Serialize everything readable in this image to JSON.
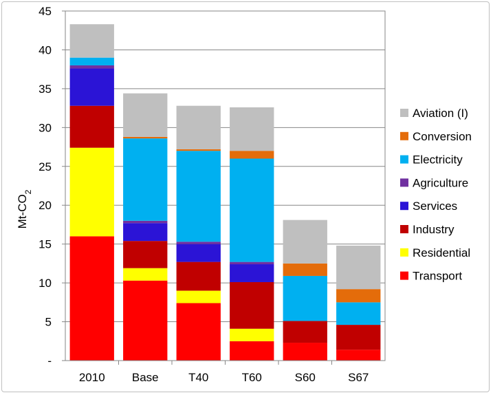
{
  "chart_data": {
    "type": "bar",
    "stacked": true,
    "ylabel": "Mt-CO",
    "ylabel_subscript": "2",
    "ylim": [
      0,
      45
    ],
    "ytick_labels": [
      "-",
      "5",
      "10",
      "15",
      "20",
      "25",
      "30",
      "35",
      "40",
      "45"
    ],
    "grid": true,
    "legend_position": "right",
    "categories": [
      "2010",
      "Base",
      "T40",
      "T60",
      "S60",
      "S67"
    ],
    "series": [
      {
        "name": "Transport",
        "color": "#ff0000",
        "values": [
          16.0,
          10.3,
          7.4,
          2.5,
          2.3,
          1.4
        ]
      },
      {
        "name": "Residential",
        "color": "#ffff00",
        "values": [
          11.4,
          1.6,
          1.6,
          1.6,
          0,
          0
        ]
      },
      {
        "name": "Industry",
        "color": "#c00000",
        "values": [
          5.4,
          3.5,
          3.7,
          6.0,
          2.8,
          3.2
        ]
      },
      {
        "name": "Services",
        "color": "#2b14d6",
        "values": [
          4.8,
          2.3,
          2.3,
          2.3,
          0,
          0
        ]
      },
      {
        "name": "Agriculture",
        "color": "#7030a0",
        "values": [
          0.4,
          0.3,
          0.3,
          0.3,
          0,
          0
        ]
      },
      {
        "name": "Electricity",
        "color": "#00b0f0",
        "values": [
          1.0,
          10.6,
          11.7,
          13.3,
          5.8,
          2.9
        ]
      },
      {
        "name": "Conversion",
        "color": "#e46c0a",
        "values": [
          0,
          0.2,
          0.2,
          1.0,
          1.6,
          1.7
        ]
      },
      {
        "name": "Aviation (I)",
        "color": "#bfbfbf",
        "values": [
          4.3,
          5.6,
          5.6,
          5.6,
          5.6,
          5.6
        ]
      }
    ]
  }
}
